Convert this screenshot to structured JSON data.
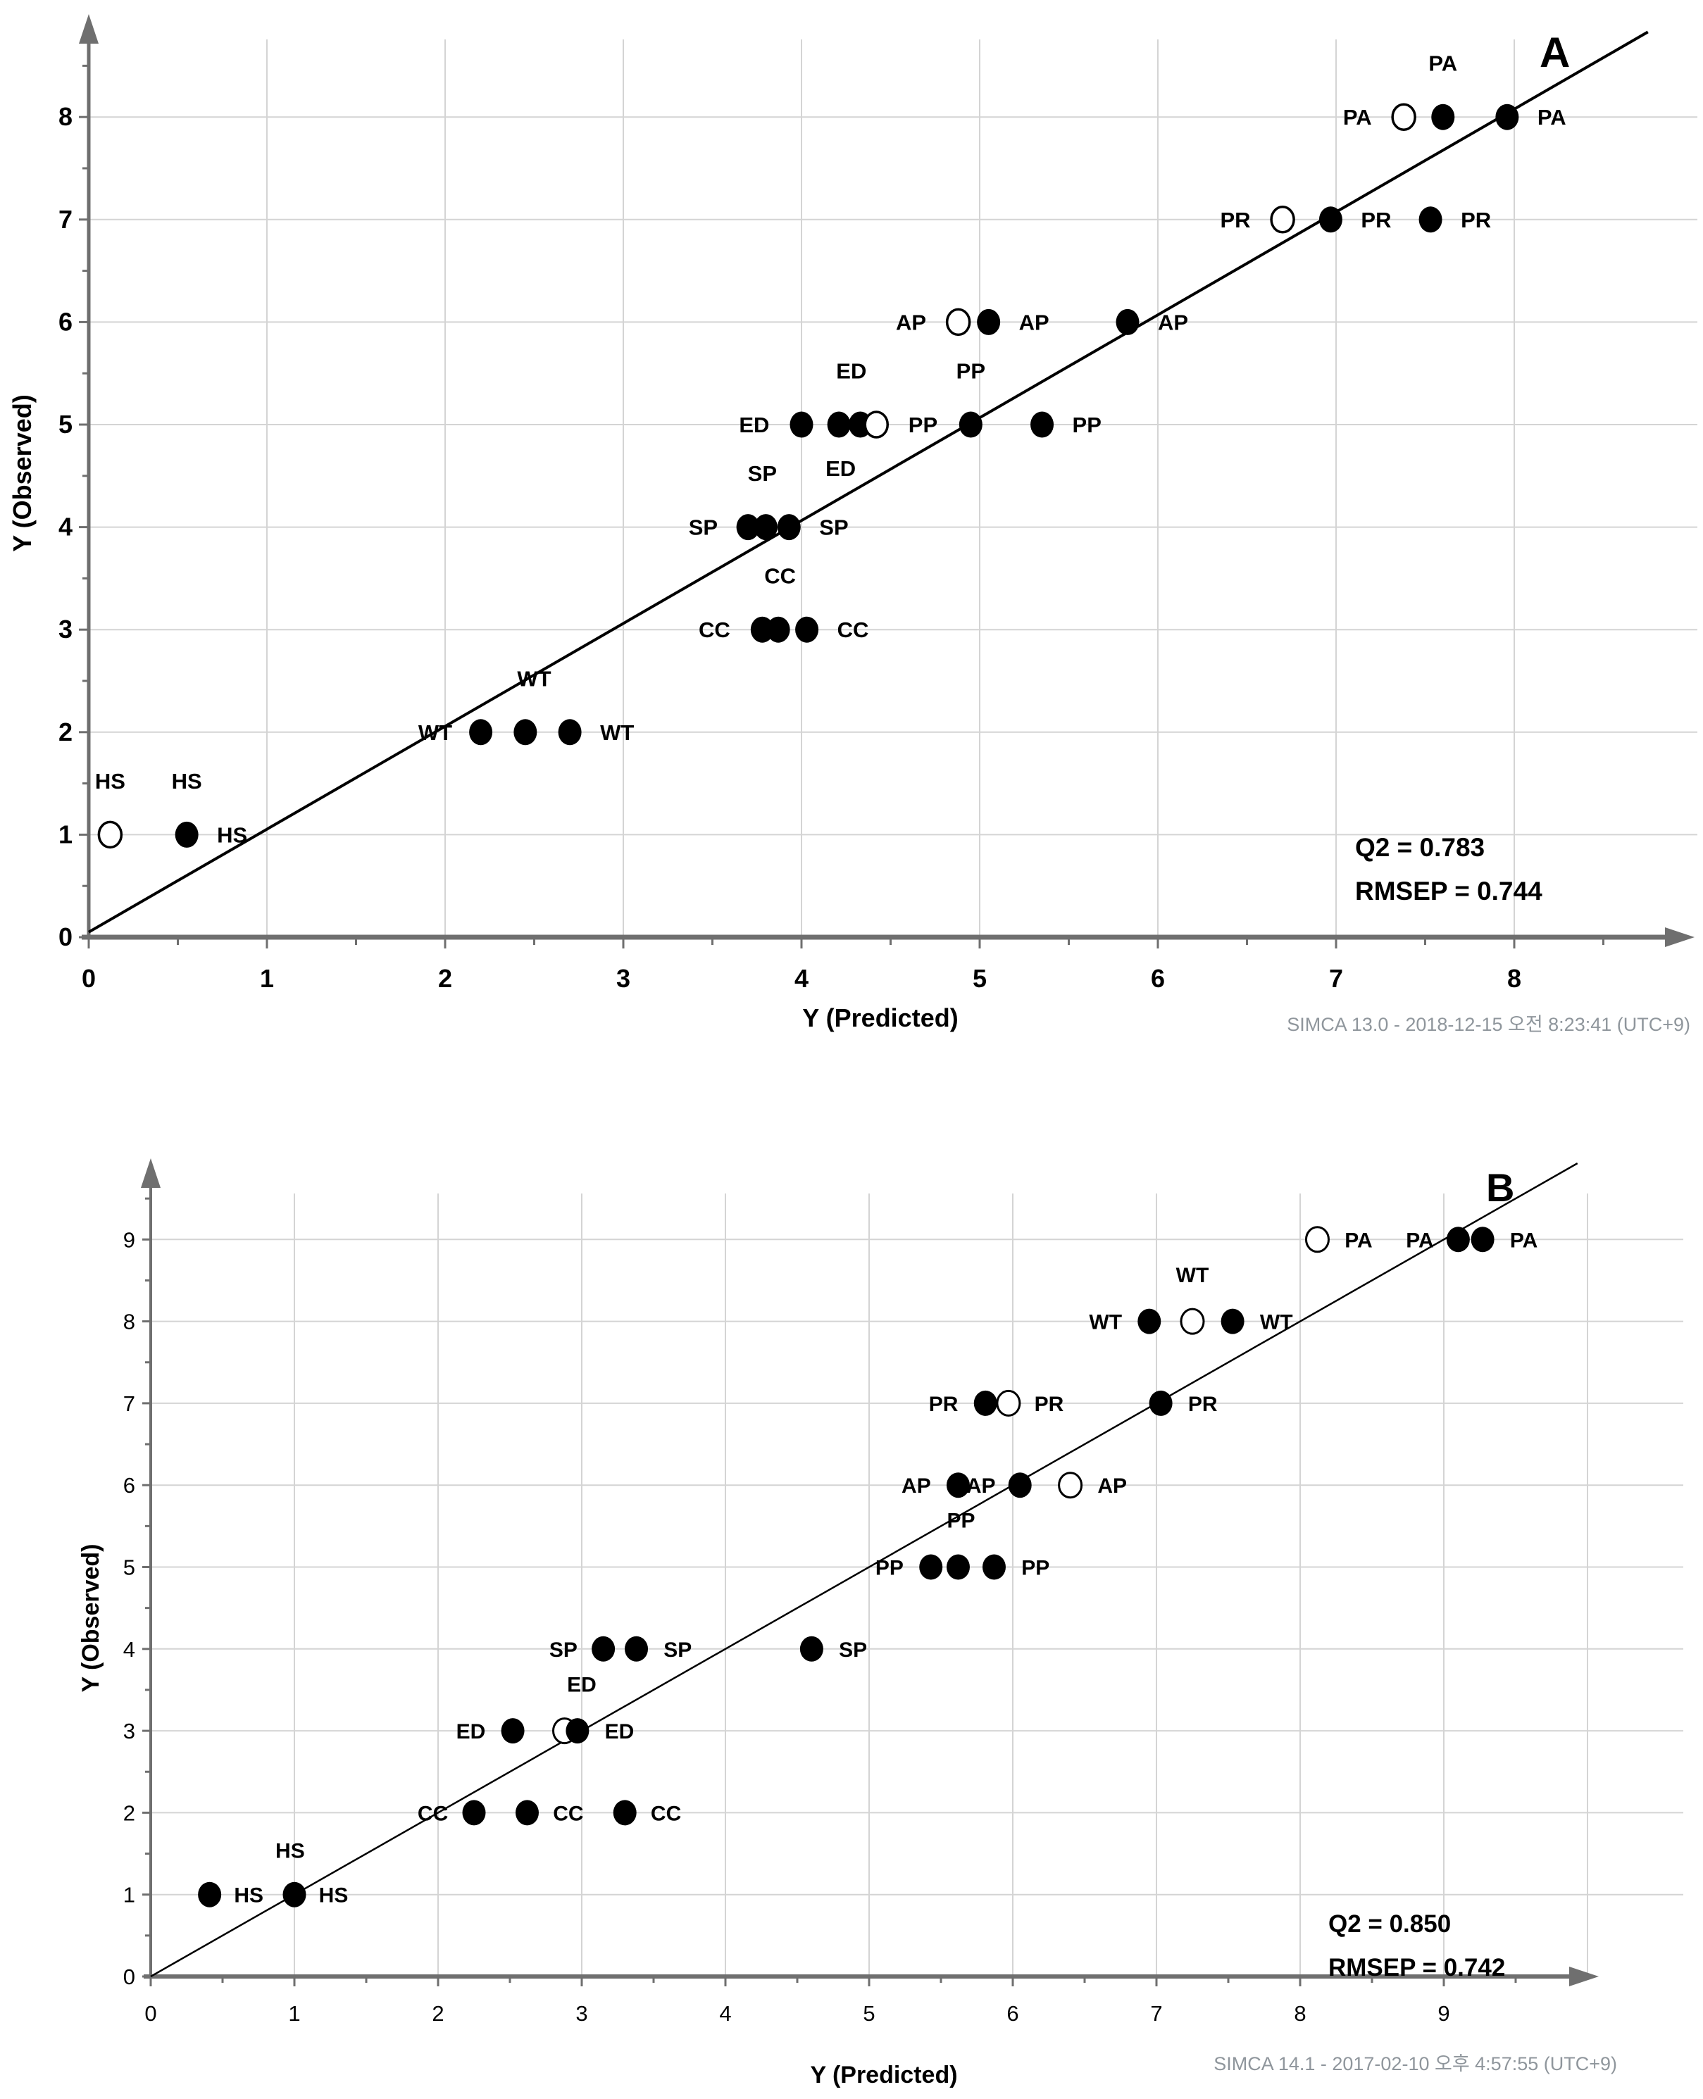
{
  "figure": {
    "background": "#ffffff",
    "colors": {
      "marker": "#000000",
      "grid": "#d4d4d4",
      "axis": "#6f6f6f",
      "fit_line": "#000000",
      "text": "#000000",
      "footer_text": "#8f969c"
    }
  },
  "chart_data": [
    {
      "type": "scatter",
      "panel": "A",
      "corner_label": "A",
      "xlabel": "Y (Predicted)",
      "ylabel": "Y (Observed)",
      "xlim": [
        0,
        8.9
      ],
      "ylim": [
        0,
        8.75
      ],
      "x_major_ticks": [
        0,
        1,
        2,
        3,
        4,
        5,
        6,
        7,
        8
      ],
      "y_major_ticks": [
        0,
        1,
        2,
        3,
        4,
        5,
        6,
        7,
        8
      ],
      "minor_tick_step": 0.5,
      "x_gridlines": [
        1,
        2,
        3,
        4,
        5,
        6,
        7,
        8
      ],
      "y_gridlines": [
        1,
        2,
        3,
        4,
        5,
        6,
        7,
        8
      ],
      "grid": "on",
      "legend_position": "none",
      "identity_line": {
        "x1": 0,
        "y1": 0.05,
        "x2": 8.75,
        "y2": 8.83
      },
      "stats_q2": "Q2 = 0.783",
      "stats_rmsep": "RMSEP = 0.744",
      "footer": "SIMCA 13.0 - 2018-12-15 오전 8:23:41 (UTC+9)",
      "series": [
        {
          "name": "calibration-sample",
          "marker": "filled-circle"
        },
        {
          "name": "prediction-sample",
          "marker": "open-circle"
        }
      ],
      "points": [
        {
          "group": "HS",
          "marker": "open",
          "x": 0.12,
          "y": 1
        },
        {
          "group": "HS",
          "marker": "filled",
          "x": 0.55,
          "y": 1
        },
        {
          "group": "WT",
          "marker": "filled",
          "x": 2.2,
          "y": 2
        },
        {
          "group": "WT",
          "marker": "filled",
          "x": 2.45,
          "y": 2
        },
        {
          "group": "WT",
          "marker": "filled",
          "x": 2.7,
          "y": 2
        },
        {
          "group": "CC",
          "marker": "filled",
          "x": 3.78,
          "y": 3
        },
        {
          "group": "CC",
          "marker": "filled",
          "x": 3.87,
          "y": 3
        },
        {
          "group": "CC",
          "marker": "filled",
          "x": 4.03,
          "y": 3
        },
        {
          "group": "SP",
          "marker": "filled",
          "x": 3.7,
          "y": 4
        },
        {
          "group": "SP",
          "marker": "filled",
          "x": 3.8,
          "y": 4
        },
        {
          "group": "SP",
          "marker": "filled",
          "x": 3.93,
          "y": 4
        },
        {
          "group": "ED",
          "marker": "filled",
          "x": 4.0,
          "y": 5
        },
        {
          "group": "ED",
          "marker": "filled",
          "x": 4.21,
          "y": 5
        },
        {
          "group": "ED",
          "marker": "filled",
          "x": 4.33,
          "y": 5
        },
        {
          "group": "PP",
          "marker": "open",
          "x": 4.42,
          "y": 5
        },
        {
          "group": "PP",
          "marker": "filled",
          "x": 4.95,
          "y": 5
        },
        {
          "group": "PP",
          "marker": "filled",
          "x": 5.35,
          "y": 5
        },
        {
          "group": "AP",
          "marker": "open",
          "x": 4.88,
          "y": 6
        },
        {
          "group": "AP",
          "marker": "filled",
          "x": 5.05,
          "y": 6
        },
        {
          "group": "AP",
          "marker": "filled",
          "x": 5.83,
          "y": 6
        },
        {
          "group": "PR",
          "marker": "open",
          "x": 6.7,
          "y": 7
        },
        {
          "group": "PR",
          "marker": "filled",
          "x": 6.97,
          "y": 7
        },
        {
          "group": "PR",
          "marker": "filled",
          "x": 7.53,
          "y": 7
        },
        {
          "group": "PA",
          "marker": "open",
          "x": 7.38,
          "y": 8
        },
        {
          "group": "PA",
          "marker": "filled",
          "x": 7.6,
          "y": 8
        },
        {
          "group": "PA",
          "marker": "filled",
          "x": 7.96,
          "y": 8
        }
      ],
      "point_labels": [
        {
          "text": "HS",
          "x": 0.12,
          "y": 1.45,
          "anchor": "middle"
        },
        {
          "text": "HS",
          "x": 0.55,
          "y": 1.45,
          "anchor": "middle"
        },
        {
          "text": "HS",
          "x": 0.72,
          "y": 1,
          "anchor": "start"
        },
        {
          "text": "WT",
          "x": 2.04,
          "y": 2,
          "anchor": "end"
        },
        {
          "text": "WT",
          "x": 2.5,
          "y": 2.45,
          "anchor": "middle"
        },
        {
          "text": "WT",
          "x": 2.87,
          "y": 2,
          "anchor": "start"
        },
        {
          "text": "CC",
          "x": 3.6,
          "y": 3,
          "anchor": "end"
        },
        {
          "text": "CC",
          "x": 3.88,
          "y": 3.45,
          "anchor": "middle"
        },
        {
          "text": "CC",
          "x": 4.2,
          "y": 3,
          "anchor": "start"
        },
        {
          "text": "SP",
          "x": 3.53,
          "y": 4,
          "anchor": "end"
        },
        {
          "text": "SP",
          "x": 3.78,
          "y": 4.45,
          "anchor": "middle"
        },
        {
          "text": "SP",
          "x": 4.1,
          "y": 4,
          "anchor": "start"
        },
        {
          "text": "ED",
          "x": 3.82,
          "y": 5,
          "anchor": "end"
        },
        {
          "text": "ED",
          "x": 4.28,
          "y": 5.45,
          "anchor": "middle"
        },
        {
          "text": "ED",
          "x": 4.22,
          "y": 4.5,
          "anchor": "middle"
        },
        {
          "text": "PP",
          "x": 4.6,
          "y": 5,
          "anchor": "start"
        },
        {
          "text": "PP",
          "x": 4.95,
          "y": 5.45,
          "anchor": "middle"
        },
        {
          "text": "PP",
          "x": 5.52,
          "y": 5,
          "anchor": "start"
        },
        {
          "text": "AP",
          "x": 4.7,
          "y": 6,
          "anchor": "end"
        },
        {
          "text": "AP",
          "x": 5.22,
          "y": 6,
          "anchor": "start"
        },
        {
          "text": "AP",
          "x": 6.0,
          "y": 6,
          "anchor": "start"
        },
        {
          "text": "PR",
          "x": 6.52,
          "y": 7,
          "anchor": "end"
        },
        {
          "text": "PR",
          "x": 7.14,
          "y": 7,
          "anchor": "start"
        },
        {
          "text": "PR",
          "x": 7.7,
          "y": 7,
          "anchor": "start"
        },
        {
          "text": "PA",
          "x": 7.2,
          "y": 8,
          "anchor": "end"
        },
        {
          "text": "PA",
          "x": 7.6,
          "y": 8.45,
          "anchor": "middle"
        },
        {
          "text": "PA",
          "x": 8.13,
          "y": 8,
          "anchor": "start"
        }
      ]
    },
    {
      "type": "scatter",
      "panel": "B",
      "corner_label": "B",
      "xlabel": "Y (Predicted)",
      "ylabel": "Y (Observed)",
      "xlim": [
        0,
        10.05
      ],
      "ylim": [
        0,
        10.0
      ],
      "x_major_ticks": [
        0,
        1,
        2,
        3,
        4,
        5,
        6,
        7,
        8,
        9
      ],
      "y_major_ticks": [
        0,
        1,
        2,
        3,
        4,
        5,
        6,
        7,
        8,
        9
      ],
      "minor_tick_step": 0.5,
      "x_gridlines": [
        1,
        2,
        3,
        4,
        5,
        6,
        7,
        8,
        9,
        10
      ],
      "y_gridlines": [
        1,
        2,
        3,
        4,
        5,
        6,
        7,
        8,
        9
      ],
      "grid": "on",
      "legend_position": "none",
      "identity_line": {
        "x1": 0,
        "y1": 0,
        "x2": 9.93,
        "y2": 9.93
      },
      "stats_q2": "Q2 = 0.850",
      "stats_rmsep": "RMSEP = 0.742",
      "footer": "SIMCA 14.1 - 2017-02-10 오후 4:57:55 (UTC+9)",
      "series": [
        {
          "name": "calibration-sample",
          "marker": "filled-circle"
        },
        {
          "name": "prediction-sample",
          "marker": "open-circle"
        }
      ],
      "points": [
        {
          "group": "HS",
          "marker": "filled",
          "x": 0.41,
          "y": 1
        },
        {
          "group": "HS",
          "marker": "filled",
          "x": 1.0,
          "y": 1
        },
        {
          "group": "CC",
          "marker": "filled",
          "x": 2.25,
          "y": 2
        },
        {
          "group": "CC",
          "marker": "filled",
          "x": 2.62,
          "y": 2
        },
        {
          "group": "CC",
          "marker": "filled",
          "x": 3.3,
          "y": 2
        },
        {
          "group": "ED",
          "marker": "open",
          "x": 2.88,
          "y": 3
        },
        {
          "group": "ED",
          "marker": "filled",
          "x": 2.52,
          "y": 3
        },
        {
          "group": "ED",
          "marker": "filled",
          "x": 2.97,
          "y": 3
        },
        {
          "group": "SP",
          "marker": "filled",
          "x": 3.15,
          "y": 4
        },
        {
          "group": "SP",
          "marker": "filled",
          "x": 3.38,
          "y": 4
        },
        {
          "group": "SP",
          "marker": "filled",
          "x": 4.6,
          "y": 4
        },
        {
          "group": "PP",
          "marker": "filled",
          "x": 5.43,
          "y": 5
        },
        {
          "group": "PP",
          "marker": "filled",
          "x": 5.62,
          "y": 5
        },
        {
          "group": "PP",
          "marker": "filled",
          "x": 5.87,
          "y": 5
        },
        {
          "group": "AP",
          "marker": "open",
          "x": 6.4,
          "y": 6
        },
        {
          "group": "AP",
          "marker": "filled",
          "x": 5.62,
          "y": 6
        },
        {
          "group": "AP",
          "marker": "filled",
          "x": 6.05,
          "y": 6
        },
        {
          "group": "PR",
          "marker": "open",
          "x": 5.97,
          "y": 7
        },
        {
          "group": "PR",
          "marker": "filled",
          "x": 5.81,
          "y": 7
        },
        {
          "group": "PR",
          "marker": "filled",
          "x": 7.03,
          "y": 7
        },
        {
          "group": "WT",
          "marker": "open",
          "x": 7.25,
          "y": 8
        },
        {
          "group": "WT",
          "marker": "filled",
          "x": 6.95,
          "y": 8
        },
        {
          "group": "WT",
          "marker": "filled",
          "x": 7.53,
          "y": 8
        },
        {
          "group": "PA",
          "marker": "open",
          "x": 8.12,
          "y": 9
        },
        {
          "group": "PA",
          "marker": "filled",
          "x": 9.1,
          "y": 9
        },
        {
          "group": "PA",
          "marker": "filled",
          "x": 9.27,
          "y": 9
        }
      ],
      "point_labels": [
        {
          "text": "HS",
          "x": 0.58,
          "y": 1,
          "anchor": "start"
        },
        {
          "text": "HS",
          "x": 0.97,
          "y": 1.45,
          "anchor": "middle"
        },
        {
          "text": "HS",
          "x": 1.17,
          "y": 1,
          "anchor": "start"
        },
        {
          "text": "CC",
          "x": 2.07,
          "y": 2,
          "anchor": "end"
        },
        {
          "text": "CC",
          "x": 2.8,
          "y": 2,
          "anchor": "start"
        },
        {
          "text": "CC",
          "x": 3.48,
          "y": 2,
          "anchor": "start"
        },
        {
          "text": "ED",
          "x": 2.33,
          "y": 3,
          "anchor": "end"
        },
        {
          "text": "ED",
          "x": 3.0,
          "y": 3.48,
          "anchor": "middle"
        },
        {
          "text": "ED",
          "x": 3.16,
          "y": 3,
          "anchor": "start"
        },
        {
          "text": "SP",
          "x": 2.97,
          "y": 4,
          "anchor": "end"
        },
        {
          "text": "SP",
          "x": 3.57,
          "y": 4,
          "anchor": "start"
        },
        {
          "text": "SP",
          "x": 4.79,
          "y": 4,
          "anchor": "start"
        },
        {
          "text": "PP",
          "x": 5.24,
          "y": 5,
          "anchor": "end"
        },
        {
          "text": "PP",
          "x": 5.64,
          "y": 5.48,
          "anchor": "middle"
        },
        {
          "text": "PP",
          "x": 6.06,
          "y": 5,
          "anchor": "start"
        },
        {
          "text": "AP",
          "x": 5.43,
          "y": 6,
          "anchor": "end"
        },
        {
          "text": "AP",
          "x": 5.88,
          "y": 6,
          "anchor": "end"
        },
        {
          "text": "AP",
          "x": 6.59,
          "y": 6,
          "anchor": "start"
        },
        {
          "text": "PR",
          "x": 5.62,
          "y": 7,
          "anchor": "end"
        },
        {
          "text": "PR",
          "x": 6.15,
          "y": 7,
          "anchor": "start"
        },
        {
          "text": "PR",
          "x": 7.22,
          "y": 7,
          "anchor": "start"
        },
        {
          "text": "WT",
          "x": 6.76,
          "y": 8,
          "anchor": "end"
        },
        {
          "text": "WT",
          "x": 7.25,
          "y": 8.48,
          "anchor": "middle"
        },
        {
          "text": "WT",
          "x": 7.72,
          "y": 8,
          "anchor": "start"
        },
        {
          "text": "PA",
          "x": 8.31,
          "y": 9,
          "anchor": "start"
        },
        {
          "text": "PA",
          "x": 8.93,
          "y": 9,
          "anchor": "end"
        },
        {
          "text": "PA",
          "x": 9.46,
          "y": 9,
          "anchor": "start"
        }
      ]
    }
  ]
}
